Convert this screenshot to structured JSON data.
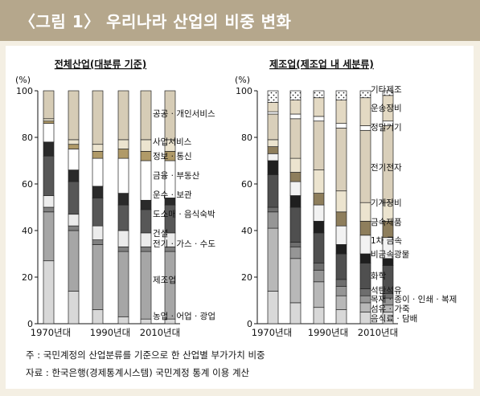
{
  "header": {
    "title": "〈그림 1〉 우리나라 산업의 비중 변화"
  },
  "notes": {
    "note": "주 : 국민계정의 산업분류를 기준으로 한 산업별 부가가치 비중",
    "source": "자료 : 한국은행(경제통계시스템) 국민계정 통계 이용 계산"
  },
  "chart_data": [
    {
      "type": "bar",
      "stacked": true,
      "title": "전체산업(대분류 기준)",
      "ylabel": "(%)",
      "ylim": [
        0,
        100
      ],
      "yticks": [
        0,
        20,
        40,
        60,
        80,
        100
      ],
      "x_tick_labels": [
        "1970년대",
        "1990년대",
        "2010년대"
      ],
      "categories": [
        "1970s-a",
        "1970s-b",
        "1990s-a",
        "1990s-b",
        "2010s-a",
        "2010s-b"
      ],
      "series": [
        {
          "name": "농업 · 어업 · 광업",
          "color": "#d8d8d8",
          "values": [
            27,
            14,
            6,
            3,
            2,
            2
          ]
        },
        {
          "name": "제조업",
          "color": "#a6a6a6",
          "values": [
            21,
            26,
            28,
            28,
            29,
            29
          ]
        },
        {
          "name": "전기 · 가스 · 수도",
          "color": "#808080",
          "values": [
            2,
            2,
            2,
            2,
            2,
            2
          ]
        },
        {
          "name": "건설",
          "color": "#ececec",
          "values": [
            5,
            5,
            6,
            7,
            6,
            6
          ]
        },
        {
          "name": "도소매 · 음식숙박",
          "color": "#575757",
          "values": [
            17,
            14,
            12,
            11,
            10,
            12
          ]
        },
        {
          "name": "운수 · 보관",
          "color": "#2a2a2a",
          "values": [
            6,
            5,
            5,
            5,
            4,
            3
          ]
        },
        {
          "name": "금융 · 부동산",
          "color": "#ffffff",
          "values": [
            8,
            9,
            12,
            15,
            17,
            16
          ]
        },
        {
          "name": "정보 · 통신",
          "color": "#b09a68",
          "values": [
            1,
            2,
            3,
            4,
            4,
            4
          ]
        },
        {
          "name": "사업서비스",
          "color": "#ece4cf",
          "values": [
            1,
            2,
            3,
            4,
            5,
            5
          ]
        },
        {
          "name": "공공 · 개인서비스",
          "color": "#d6ccb6",
          "values": [
            12,
            21,
            23,
            21,
            21,
            21
          ]
        }
      ]
    },
    {
      "type": "bar",
      "stacked": true,
      "title": "제조업(제조업 내 세분류)",
      "ylabel": "(%)",
      "ylim": [
        0,
        100
      ],
      "yticks": [
        0,
        20,
        40,
        60,
        80,
        100
      ],
      "x_tick_labels": [
        "1970년대",
        "1990년대",
        "2010년대"
      ],
      "categories": [
        "1970s-a",
        "1970s-b",
        "1990s-a",
        "1990s-b",
        "2010s-a",
        "2010s-b"
      ],
      "series": [
        {
          "name": "음식료 · 담배",
          "color": "#d8d8d8",
          "values": [
            14,
            9,
            7,
            6,
            5,
            5
          ]
        },
        {
          "name": "섬유 · 가죽",
          "color": "#b8b8b8",
          "values": [
            27,
            19,
            11,
            6,
            4,
            3
          ]
        },
        {
          "name": "목재 · 종이 · 인쇄 · 복제",
          "color": "#969696",
          "values": [
            7,
            5,
            5,
            4,
            3,
            3
          ]
        },
        {
          "name": "석탄석유",
          "color": "#6e6e6e",
          "values": [
            2,
            2,
            3,
            3,
            3,
            2
          ]
        },
        {
          "name": "화학",
          "color": "#4f4f4f",
          "values": [
            14,
            15,
            13,
            11,
            11,
            12
          ]
        },
        {
          "name": "비금속광물",
          "color": "#1f1f1f",
          "values": [
            6,
            5,
            5,
            4,
            4,
            3
          ]
        },
        {
          "name": "1차 금속",
          "color": "#f2f2f2",
          "values": [
            3,
            6,
            7,
            8,
            8,
            9
          ]
        },
        {
          "name": "금속제품",
          "color": "#8e7e5c",
          "values": [
            3,
            4,
            5,
            6,
            6,
            7
          ]
        },
        {
          "name": "기계장비",
          "color": "#ece4cf",
          "values": [
            3,
            6,
            10,
            9,
            8,
            8
          ]
        },
        {
          "name": "전기전자",
          "color": "#d9cfba",
          "values": [
            11,
            17,
            21,
            27,
            31,
            33
          ]
        },
        {
          "name": "정밀기기",
          "color": "#ffffff",
          "values": [
            1,
            2,
            2,
            2,
            2,
            2
          ]
        },
        {
          "name": "운송장비",
          "color": "#e3d9c3",
          "values": [
            4,
            6,
            8,
            10,
            12,
            11
          ]
        },
        {
          "name": "기타제조",
          "color": "#ffffff",
          "pattern": "dotted",
          "values": [
            5,
            4,
            3,
            4,
            3,
            2
          ]
        }
      ]
    }
  ]
}
